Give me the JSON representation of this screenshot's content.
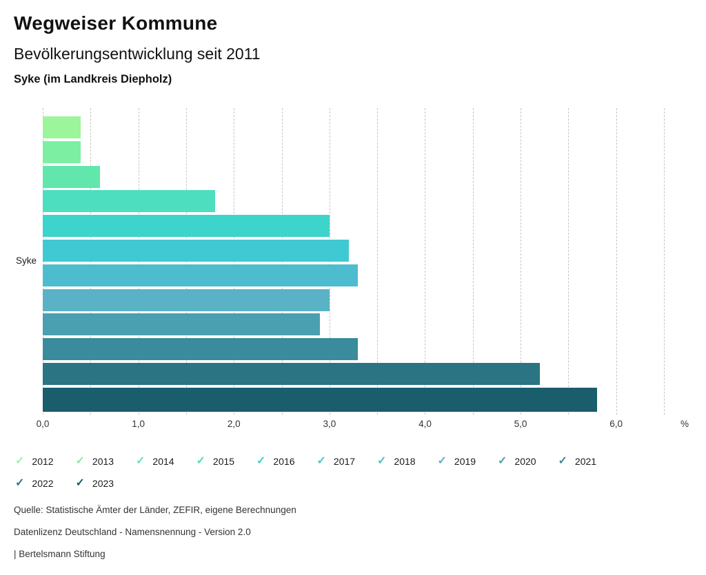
{
  "header": {
    "title": "Wegweiser Kommune",
    "subtitle": "Bevölkerungsentwicklung seit 2011",
    "location": "Syke (im Landkreis Diepholz)"
  },
  "chart_data": {
    "type": "bar",
    "orientation": "horizontal",
    "title": "Bevölkerungsentwicklung seit 2011",
    "group_label": "Syke",
    "unit_label": "%",
    "xlim": [
      0,
      6.5
    ],
    "grid_interval": 0.5,
    "grid_on": true,
    "legend_position": "bottom",
    "x_tick_values": [
      0,
      1,
      2,
      3,
      4,
      5,
      6
    ],
    "x_tick_labels": [
      "0,0",
      "1,0",
      "2,0",
      "3,0",
      "4,0",
      "5,0",
      "6,0"
    ],
    "categories": [
      "2012",
      "2013",
      "2014",
      "2015",
      "2016",
      "2017",
      "2018",
      "2019",
      "2020",
      "2021",
      "2022",
      "2023"
    ],
    "values": [
      0.4,
      0.4,
      0.6,
      1.8,
      3.0,
      3.2,
      3.3,
      3.0,
      2.9,
      3.3,
      5.2,
      5.8
    ],
    "colors": [
      "#9CF59B",
      "#7DEFA3",
      "#61E6AC",
      "#4CDEBE",
      "#3DD4CC",
      "#40C9D2",
      "#4DBCCE",
      "#5AB2C6",
      "#4AA0B1",
      "#3A8B9B",
      "#2A7484",
      "#1A5D6D"
    ],
    "axis_line_color": "#1A5D6D"
  },
  "legend": {
    "check_icon_glyph": "✓"
  },
  "footer": {
    "source": "Quelle: Statistische Ämter der Länder, ZEFIR, eigene Berechnungen",
    "license": "Datenlizenz Deutschland - Namensnennung - Version 2.0",
    "attribution": "| Bertelsmann Stiftung"
  }
}
